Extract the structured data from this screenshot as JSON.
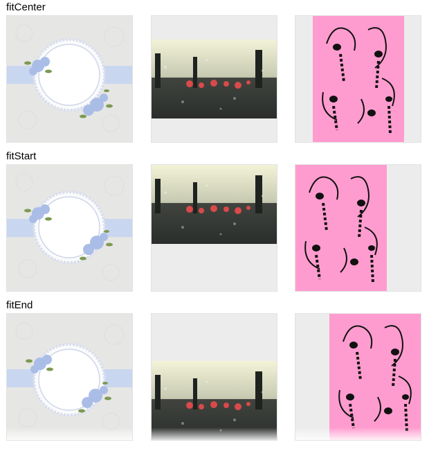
{
  "rows": [
    {
      "label": "fitCenter"
    },
    {
      "label": "fitStart"
    },
    {
      "label": "fitEnd"
    }
  ],
  "images": {
    "frame": "lace-frame-image",
    "rain": "rainy-window-image",
    "cats": "pink-cats-image"
  },
  "colors": {
    "box_background": "#ececec",
    "frame_background": "#e6e6e4",
    "ribbon": "#c9d6ef",
    "cat_pink": "#ff9ccf",
    "rain_sky": "#eef0cf",
    "rain_lights": "#d94a4a"
  }
}
